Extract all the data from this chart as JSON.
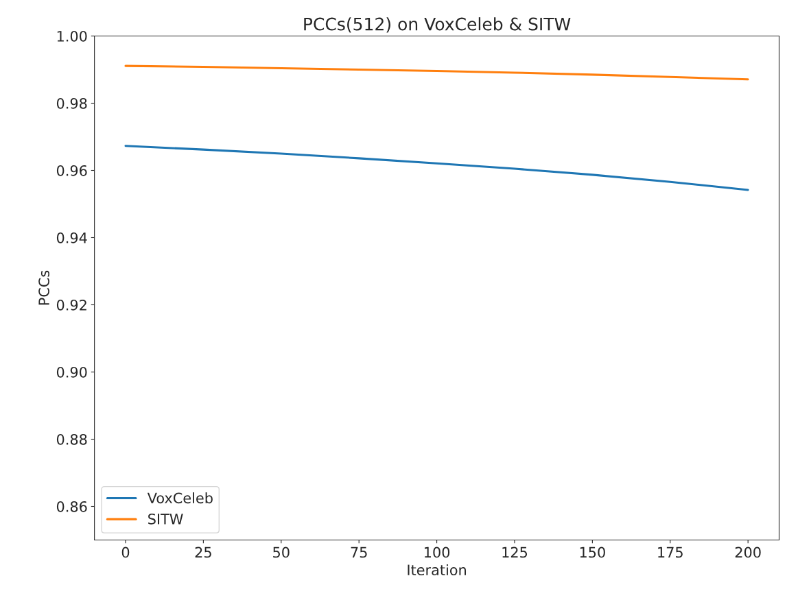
{
  "chart_data": {
    "type": "line",
    "title": "PCCs(512) on VoxCeleb & SITW",
    "xlabel": "Iteration",
    "ylabel": "PCCs",
    "x": [
      0,
      25,
      50,
      75,
      100,
      125,
      150,
      175,
      200
    ],
    "series": [
      {
        "name": "VoxCeleb",
        "color": "#1f77b4",
        "values": [
          0.9673,
          0.9662,
          0.965,
          0.9636,
          0.9621,
          0.9605,
          0.9587,
          0.9566,
          0.9542
        ]
      },
      {
        "name": "SITW",
        "color": "#ff7f0e",
        "values": [
          0.9911,
          0.9908,
          0.9904,
          0.99,
          0.9896,
          0.9891,
          0.9885,
          0.9878,
          0.9871
        ]
      }
    ],
    "xlim": [
      -10,
      210
    ],
    "ylim": [
      0.85,
      1.0
    ],
    "xticks": [
      0,
      25,
      50,
      75,
      100,
      125,
      150,
      175,
      200
    ],
    "yticks": [
      {
        "value": 0.86,
        "label": "0.86"
      },
      {
        "value": 0.88,
        "label": "0.88"
      },
      {
        "value": 0.9,
        "label": "0.90"
      },
      {
        "value": 0.92,
        "label": "0.92"
      },
      {
        "value": 0.94,
        "label": "0.94"
      },
      {
        "value": 0.96,
        "label": "0.96"
      },
      {
        "value": 0.98,
        "label": "0.98"
      },
      {
        "value": 1.0,
        "label": "1.00"
      }
    ],
    "legend": "bottom left",
    "grid": false
  }
}
